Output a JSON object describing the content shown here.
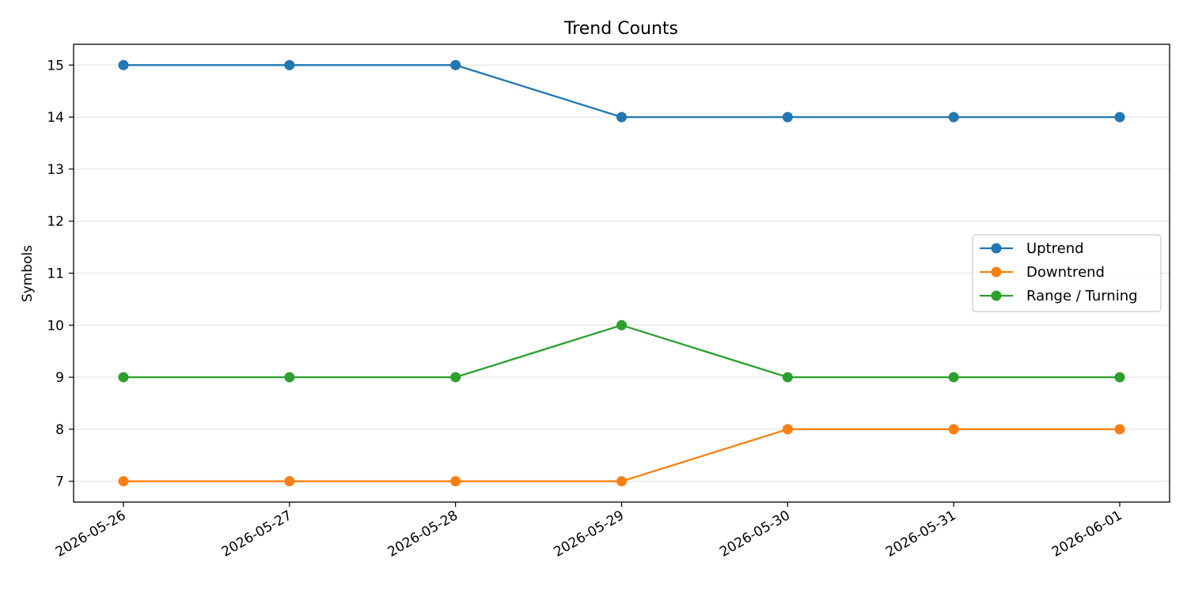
{
  "chart_data": {
    "type": "line",
    "title": "Trend Counts",
    "xlabel": "",
    "ylabel": "Symbols",
    "x": [
      "2026-05-26",
      "2026-05-27",
      "2026-05-28",
      "2026-05-29",
      "2026-05-30",
      "2026-05-31",
      "2026-06-01"
    ],
    "yticks": [
      7,
      8,
      9,
      10,
      11,
      12,
      13,
      14,
      15
    ],
    "ylim": [
      6.6,
      15.4
    ],
    "grid": "horizontal",
    "legend_position": "center-right",
    "series": [
      {
        "name": "Uptrend",
        "color": "#1f77b4",
        "marker": "circle",
        "values": [
          15,
          15,
          15,
          14,
          14,
          14,
          14
        ]
      },
      {
        "name": "Downtrend",
        "color": "#ff7f0e",
        "marker": "circle",
        "values": [
          7,
          7,
          7,
          7,
          8,
          8,
          8
        ]
      },
      {
        "name": "Range / Turning",
        "color": "#2ca02c",
        "marker": "circle",
        "values": [
          9,
          9,
          9,
          10,
          9,
          9,
          9
        ]
      }
    ]
  }
}
